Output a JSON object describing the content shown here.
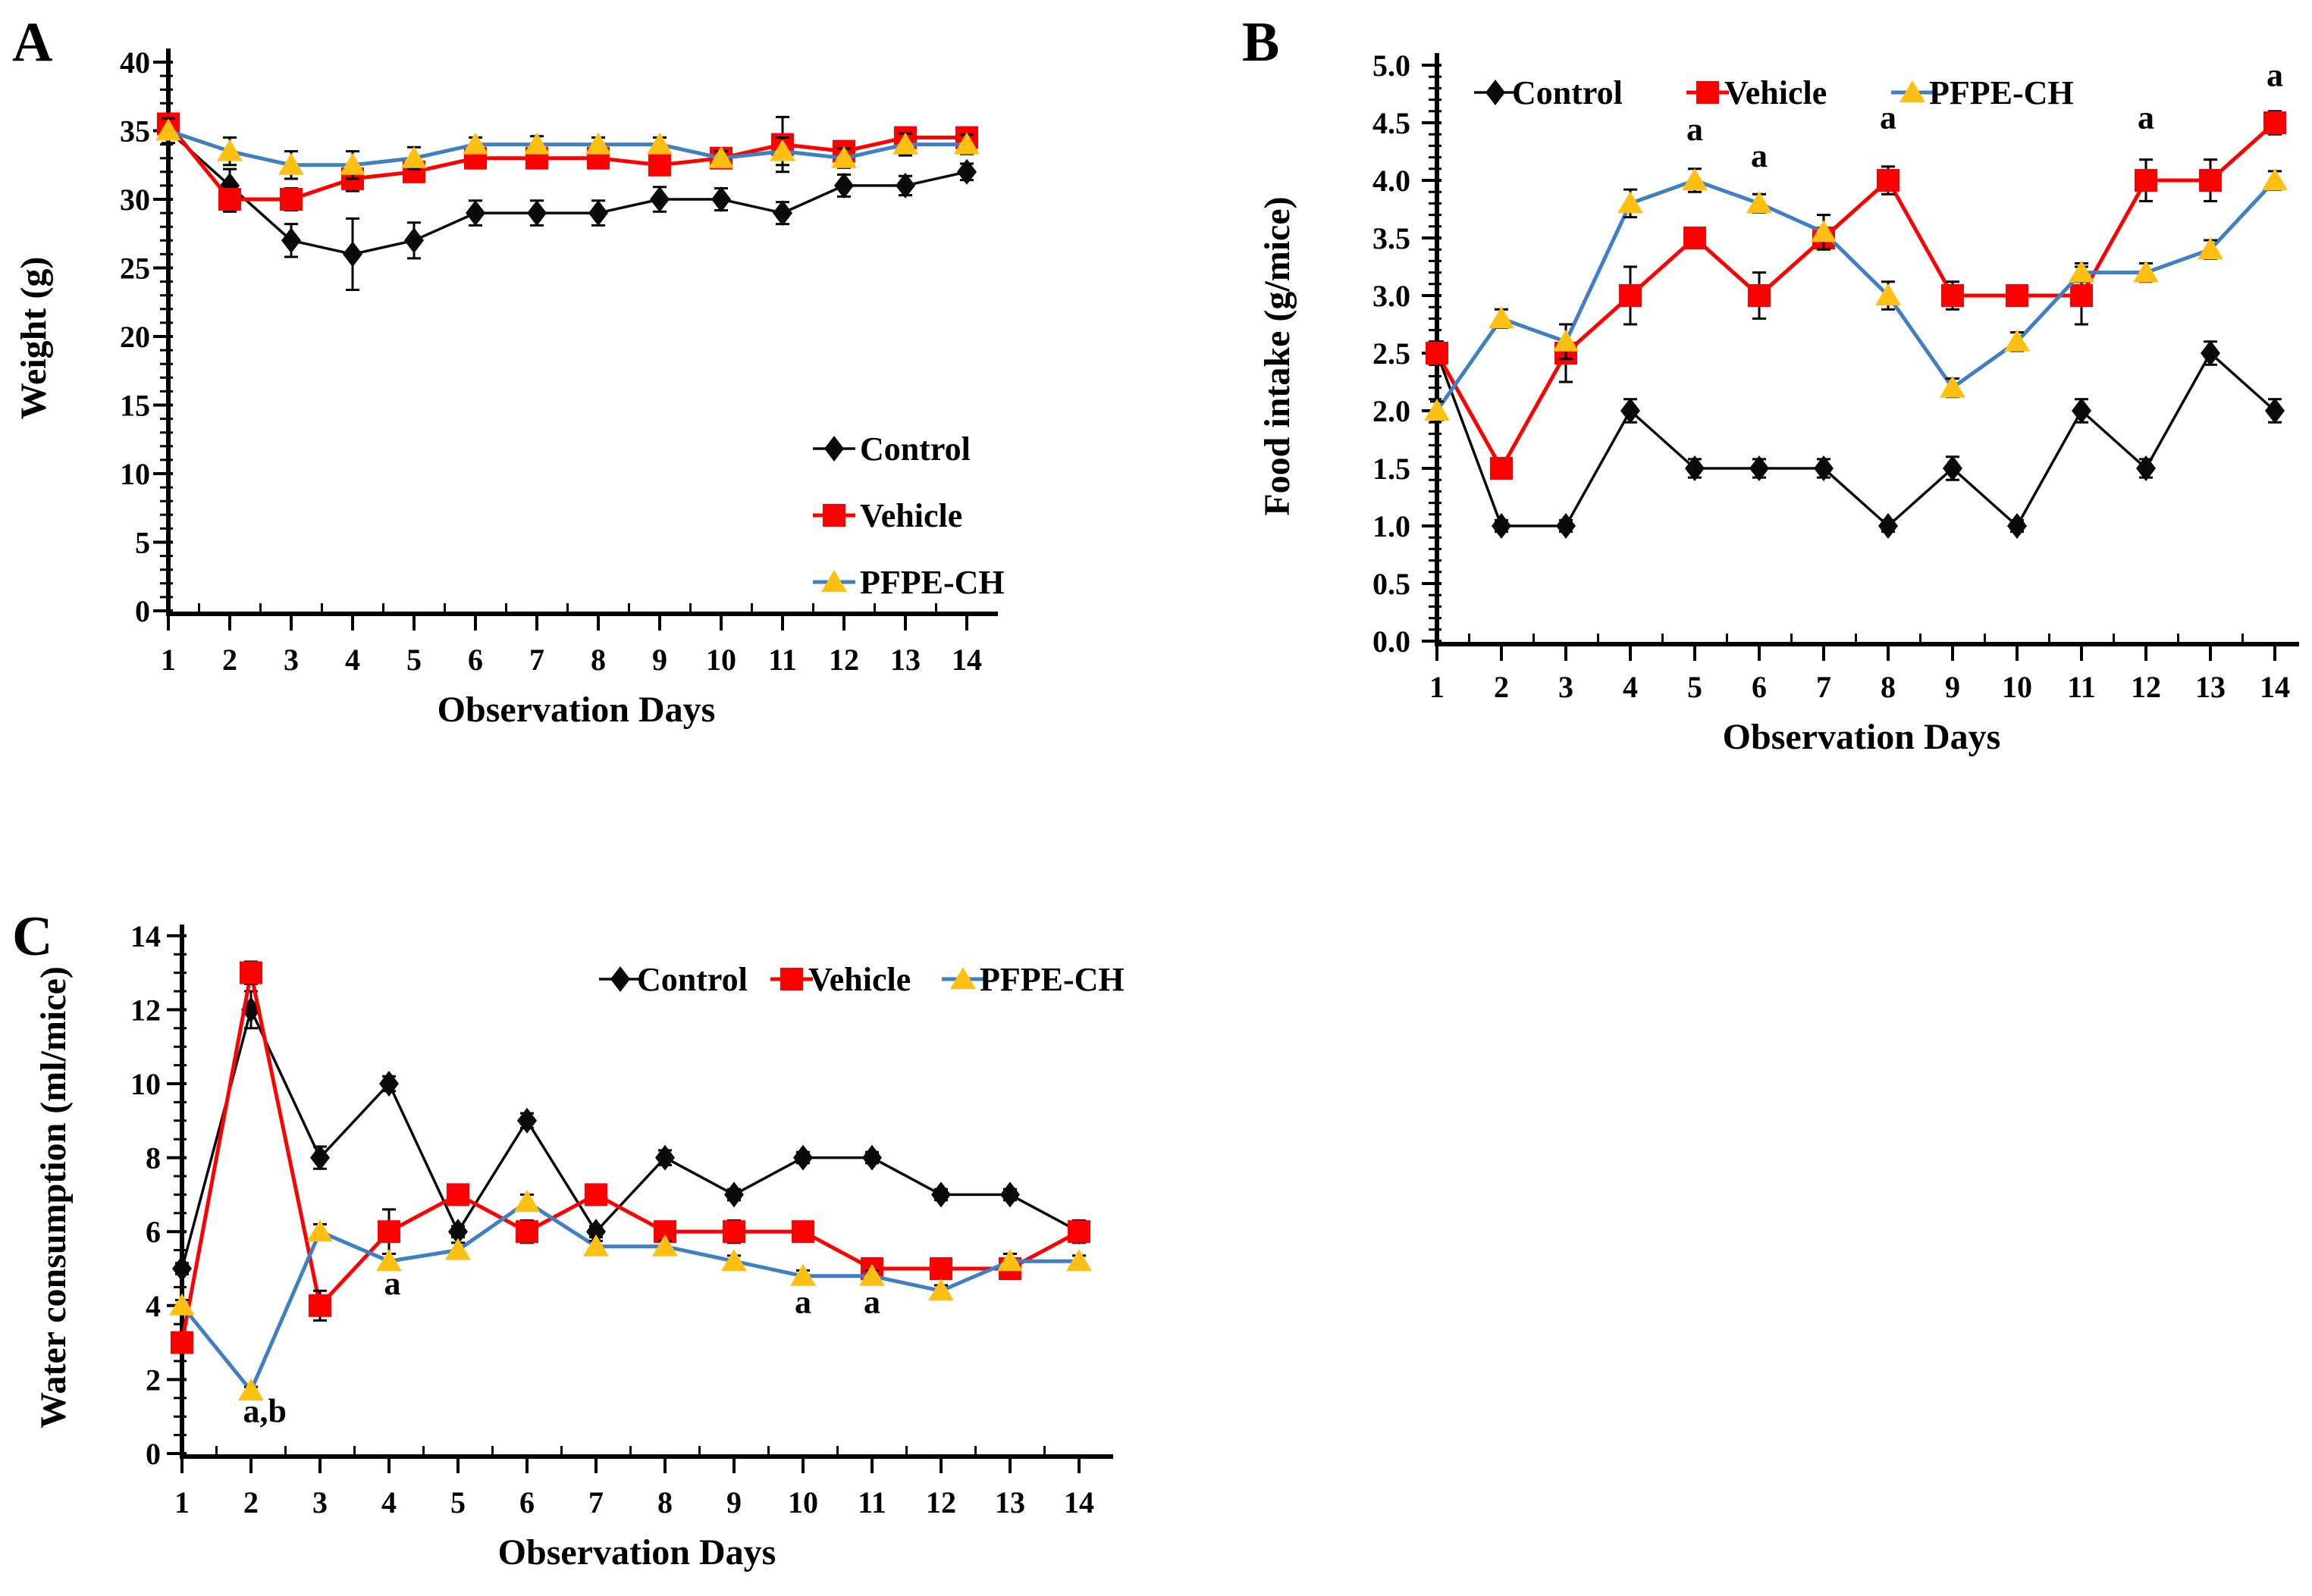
{
  "figure": {
    "background": "#ffffff",
    "panels": [
      "A",
      "B",
      "C"
    ]
  },
  "colors": {
    "control": "#0a0a0a",
    "vehicle": "#ff0000",
    "pfpe_marker": "#ffc013",
    "pfpe_line": "#3f80c4"
  },
  "chart_data": [
    {
      "id": "A",
      "panel_label": "A",
      "type": "line",
      "title": "",
      "xlabel": "Observation Days",
      "ylabel": "Weight (g)",
      "x": [
        "1",
        "2",
        "3",
        "4",
        "5",
        "6",
        "7",
        "8",
        "9",
        "10",
        "11",
        "12",
        "13",
        "14"
      ],
      "ylim": [
        0,
        40
      ],
      "grid": false,
      "yticks": [
        {
          "v": 0,
          "label": "0"
        },
        {
          "v": 5,
          "label": "5"
        },
        {
          "v": 10,
          "label": "10"
        },
        {
          "v": 15,
          "label": "15"
        },
        {
          "v": 20,
          "label": "20"
        },
        {
          "v": 25,
          "label": "25"
        },
        {
          "v": 30,
          "label": "30"
        },
        {
          "v": 35,
          "label": "35"
        },
        {
          "v": 40,
          "label": "40"
        }
      ],
      "legend": {
        "position": "inside-lower-right",
        "orientation": "vertical",
        "entries": [
          "Control",
          "Vehicle",
          "PFPE-CH"
        ]
      },
      "series": [
        {
          "name": "Control",
          "marker": "diamond",
          "color": "#0a0a0a",
          "line_color": "#0a0a0a",
          "line_width": 3.5,
          "values": [
            35,
            31,
            27,
            26,
            27,
            29,
            29,
            29,
            30,
            30,
            29,
            31,
            31,
            32
          ],
          "err": [
            0.4,
            1.2,
            1.2,
            2.6,
            1.3,
            0.9,
            0.9,
            0.9,
            0.9,
            0.8,
            0.8,
            0.8,
            0.7,
            0.6
          ]
        },
        {
          "name": "Vehicle",
          "marker": "square",
          "color": "#ff0000",
          "line_color": "#ff0000",
          "line_width": 5,
          "values": [
            35.5,
            30,
            30,
            31.5,
            32,
            33,
            33,
            33,
            32.5,
            33,
            34,
            33.5,
            34.5,
            34.5
          ],
          "err": [
            0.6,
            0.9,
            0.8,
            0.9,
            0.7,
            0.6,
            0.6,
            0.6,
            0.6,
            0.6,
            2.0,
            0.7,
            0.6,
            0.7
          ]
        },
        {
          "name": "PFPE-CH",
          "marker": "triangle",
          "color": "#ffc013",
          "line_color": "#3f80c4",
          "line_width": 5,
          "values": [
            35,
            33.5,
            32.5,
            32.5,
            33,
            34,
            34,
            34,
            34,
            33,
            33.5,
            33,
            34,
            34
          ],
          "err": [
            0.9,
            1.0,
            1.0,
            1.0,
            0.8,
            0.5,
            0.6,
            0.5,
            0.5,
            0.5,
            1.0,
            0.7,
            0.8,
            0.7
          ]
        }
      ],
      "annotations": []
    },
    {
      "id": "B",
      "panel_label": "B",
      "type": "line",
      "title": "",
      "xlabel": "Observation Days",
      "ylabel": "Food intake (g/mice)",
      "x": [
        "1",
        "2",
        "3",
        "4",
        "5",
        "6",
        "7",
        "8",
        "9",
        "10",
        "11",
        "12",
        "13",
        "14"
      ],
      "ylim": [
        0,
        5
      ],
      "grid": false,
      "yticks": [
        {
          "v": 0,
          "label": "0.0"
        },
        {
          "v": 0.5,
          "label": "0.5"
        },
        {
          "v": 1,
          "label": "1.0"
        },
        {
          "v": 1.5,
          "label": "1.5"
        },
        {
          "v": 2,
          "label": "2.0"
        },
        {
          "v": 2.5,
          "label": "2.5"
        },
        {
          "v": 3,
          "label": "3.0"
        },
        {
          "v": 3.5,
          "label": "3.5"
        },
        {
          "v": 4,
          "label": "4.0"
        },
        {
          "v": 4.5,
          "label": "4.5"
        },
        {
          "v": 5,
          "label": "5.0"
        }
      ],
      "legend": {
        "position": "inside-top",
        "orientation": "horizontal",
        "entries": [
          "Control",
          "Vehicle",
          "PFPE-CH"
        ]
      },
      "series": [
        {
          "name": "Control",
          "marker": "diamond",
          "color": "#0a0a0a",
          "line_color": "#0a0a0a",
          "line_width": 3.5,
          "values": [
            2.5,
            1,
            1,
            2,
            1.5,
            1.5,
            1.5,
            1,
            1.5,
            1,
            2,
            1.5,
            2.5,
            2
          ],
          "err": [
            0.1,
            0.05,
            0.05,
            0.1,
            0.08,
            0.08,
            0.08,
            0.05,
            0.1,
            0.05,
            0.1,
            0.08,
            0.1,
            0.1
          ]
        },
        {
          "name": "Vehicle",
          "marker": "square",
          "color": "#ff0000",
          "line_color": "#ff0000",
          "line_width": 5,
          "values": [
            2.5,
            1.5,
            2.5,
            3,
            3.5,
            3,
            3.5,
            4,
            3,
            3,
            3,
            4,
            4,
            4.5
          ],
          "err": [
            0.1,
            0.08,
            0.25,
            0.25,
            0.08,
            0.2,
            0.08,
            0.12,
            0.12,
            0.08,
            0.25,
            0.18,
            0.18,
            0.1
          ]
        },
        {
          "name": "PFPE-CH",
          "marker": "triangle",
          "color": "#ffc013",
          "line_color": "#3f80c4",
          "line_width": 5,
          "values": [
            2,
            2.8,
            2.6,
            3.8,
            4,
            3.8,
            3.55,
            3,
            2.2,
            2.6,
            3.2,
            3.2,
            3.4,
            4
          ],
          "err": [
            0.08,
            0.08,
            0.15,
            0.12,
            0.1,
            0.08,
            0.15,
            0.12,
            0.08,
            0.08,
            0.08,
            0.08,
            0.08,
            0.08
          ]
        }
      ],
      "annotations": [
        {
          "text": "a",
          "x": 5,
          "y": 4.35
        },
        {
          "text": "a",
          "x": 6,
          "y": 4.12
        },
        {
          "text": "a",
          "x": 8,
          "y": 4.45
        },
        {
          "text": "a",
          "x": 12,
          "y": 4.45
        },
        {
          "text": "a",
          "x": 14,
          "y": 4.82
        }
      ]
    },
    {
      "id": "C",
      "panel_label": "C",
      "type": "line",
      "title": "",
      "xlabel": "Observation Days",
      "ylabel": "Water consumption (ml/mice)",
      "x": [
        "1",
        "2",
        "3",
        "4",
        "5",
        "6",
        "7",
        "8",
        "9",
        "10",
        "11",
        "12",
        "13",
        "14"
      ],
      "ylim": [
        0,
        14
      ],
      "grid": false,
      "yticks": [
        {
          "v": 0,
          "label": "0"
        },
        {
          "v": 2,
          "label": "2"
        },
        {
          "v": 4,
          "label": "4"
        },
        {
          "v": 6,
          "label": "6"
        },
        {
          "v": 8,
          "label": "8"
        },
        {
          "v": 10,
          "label": "10"
        },
        {
          "v": 12,
          "label": "12"
        },
        {
          "v": 14,
          "label": "14"
        }
      ],
      "legend": {
        "position": "inside-top-right",
        "orientation": "horizontal",
        "entries": [
          "Control",
          "Vehicle",
          "PFPE-CH"
        ]
      },
      "series": [
        {
          "name": "Control",
          "marker": "diamond",
          "color": "#0a0a0a",
          "line_color": "#0a0a0a",
          "line_width": 3.5,
          "values": [
            5,
            12,
            8,
            10,
            6,
            9,
            6,
            8,
            7,
            8,
            8,
            7,
            7,
            6
          ],
          "err": [
            0.15,
            0.5,
            0.3,
            0.2,
            0.15,
            0.2,
            0.15,
            0.2,
            0.15,
            0.15,
            0.15,
            0.15,
            0.15,
            0.15
          ]
        },
        {
          "name": "Vehicle",
          "marker": "square",
          "color": "#ff0000",
          "line_color": "#ff0000",
          "line_width": 5,
          "values": [
            3,
            13,
            4,
            6,
            7,
            6,
            7,
            6,
            6,
            6,
            5,
            5,
            5,
            6
          ],
          "err": [
            0.15,
            0.3,
            0.4,
            0.6,
            0.2,
            0.3,
            0.2,
            0.2,
            0.3,
            0.2,
            0.25,
            0.2,
            0.2,
            0.3
          ]
        },
        {
          "name": "PFPE-CH",
          "marker": "triangle",
          "color": "#ffc013",
          "line_color": "#3f80c4",
          "line_width": 5,
          "values": [
            4,
            1.7,
            6,
            5.2,
            5.5,
            6.8,
            5.6,
            5.6,
            5.2,
            4.8,
            4.8,
            4.4,
            5.2,
            5.2
          ],
          "err": [
            0.15,
            0.1,
            0.2,
            0.2,
            0.2,
            0.2,
            0.15,
            0.15,
            0.15,
            0.15,
            0.15,
            0.15,
            0.2,
            0.15
          ]
        }
      ],
      "annotations": [
        {
          "text": "a,b",
          "x": 2.2,
          "y": 0.85
        },
        {
          "text": "a",
          "x": 4.05,
          "y": 4.3
        },
        {
          "text": "a",
          "x": 10,
          "y": 3.8
        },
        {
          "text": "a",
          "x": 11,
          "y": 3.8
        }
      ]
    }
  ]
}
